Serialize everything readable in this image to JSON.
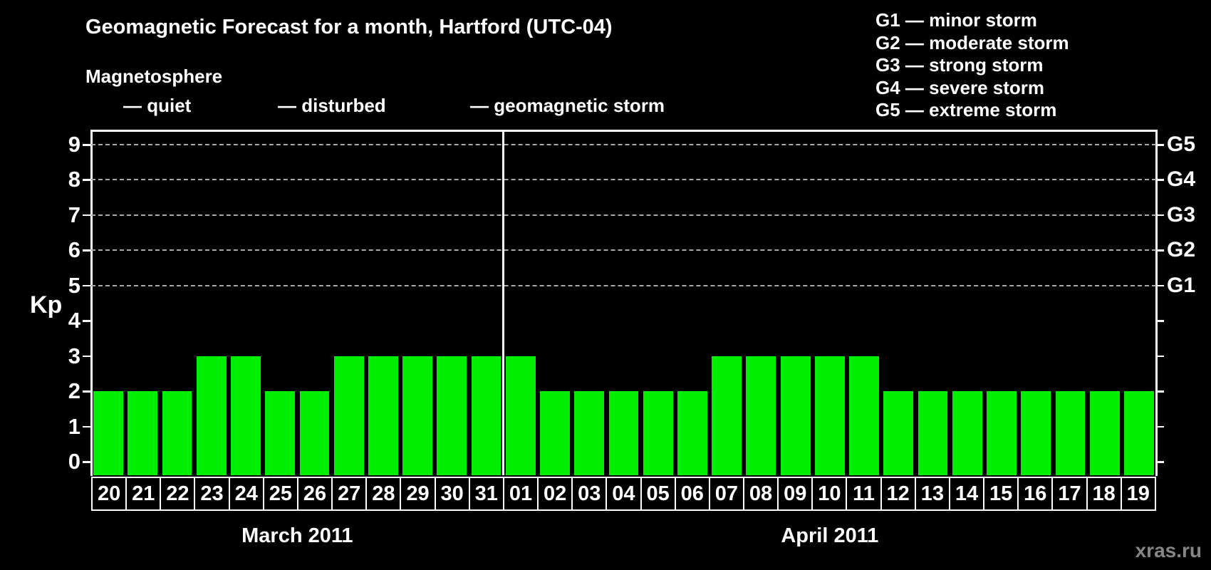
{
  "title": "Geomagnetic Forecast for a month, Hartford (UTC-04)",
  "subtitle": "Magnetosphere",
  "legend": {
    "items": [
      {
        "label": "— quiet",
        "color": "#00ee00"
      },
      {
        "label": "— disturbed",
        "color": "#ffb400"
      },
      {
        "label": "— geomagnetic storm",
        "color": "#ff0000"
      }
    ]
  },
  "g_legend": {
    "lines": [
      "G1 — minor storm",
      "G2 — moderate storm",
      "G3 — strong storm",
      "G4 — severe storm",
      "G5 — extreme storm"
    ]
  },
  "watermark": "xras.ru",
  "chart_data": {
    "type": "bar",
    "title": "Geomagnetic Forecast for a month, Hartford (UTC-04)",
    "ylabel": "Kp",
    "ylim": [
      0,
      9
    ],
    "y_ticks": [
      0,
      1,
      2,
      3,
      4,
      5,
      6,
      7,
      8,
      9
    ],
    "gridlines_at": [
      5,
      6,
      7,
      8,
      9
    ],
    "right_axis": [
      {
        "kp": 5,
        "label": "G1"
      },
      {
        "kp": 6,
        "label": "G2"
      },
      {
        "kp": 7,
        "label": "G3"
      },
      {
        "kp": 8,
        "label": "G4"
      },
      {
        "kp": 9,
        "label": "G5"
      }
    ],
    "bar_color": "#00ee00",
    "gridline_color": "#a9a9a9",
    "legend_position": "top",
    "grid": "dashed horizontal at Kp 5-9 only",
    "groups": [
      {
        "label": "March 2011",
        "categories": [
          "20",
          "21",
          "22",
          "23",
          "24",
          "25",
          "26",
          "27",
          "28",
          "29",
          "30",
          "31"
        ],
        "values": [
          2,
          2,
          2,
          3,
          3,
          2,
          2,
          3,
          3,
          3,
          3,
          3
        ]
      },
      {
        "label": "April 2011",
        "categories": [
          "01",
          "02",
          "03",
          "04",
          "05",
          "06",
          "07",
          "08",
          "09",
          "10",
          "11",
          "12",
          "13",
          "14",
          "15",
          "16",
          "17",
          "18",
          "19"
        ],
        "values": [
          3,
          2,
          2,
          2,
          2,
          2,
          3,
          3,
          3,
          3,
          3,
          2,
          2,
          2,
          2,
          2,
          2,
          2,
          2
        ]
      }
    ]
  }
}
